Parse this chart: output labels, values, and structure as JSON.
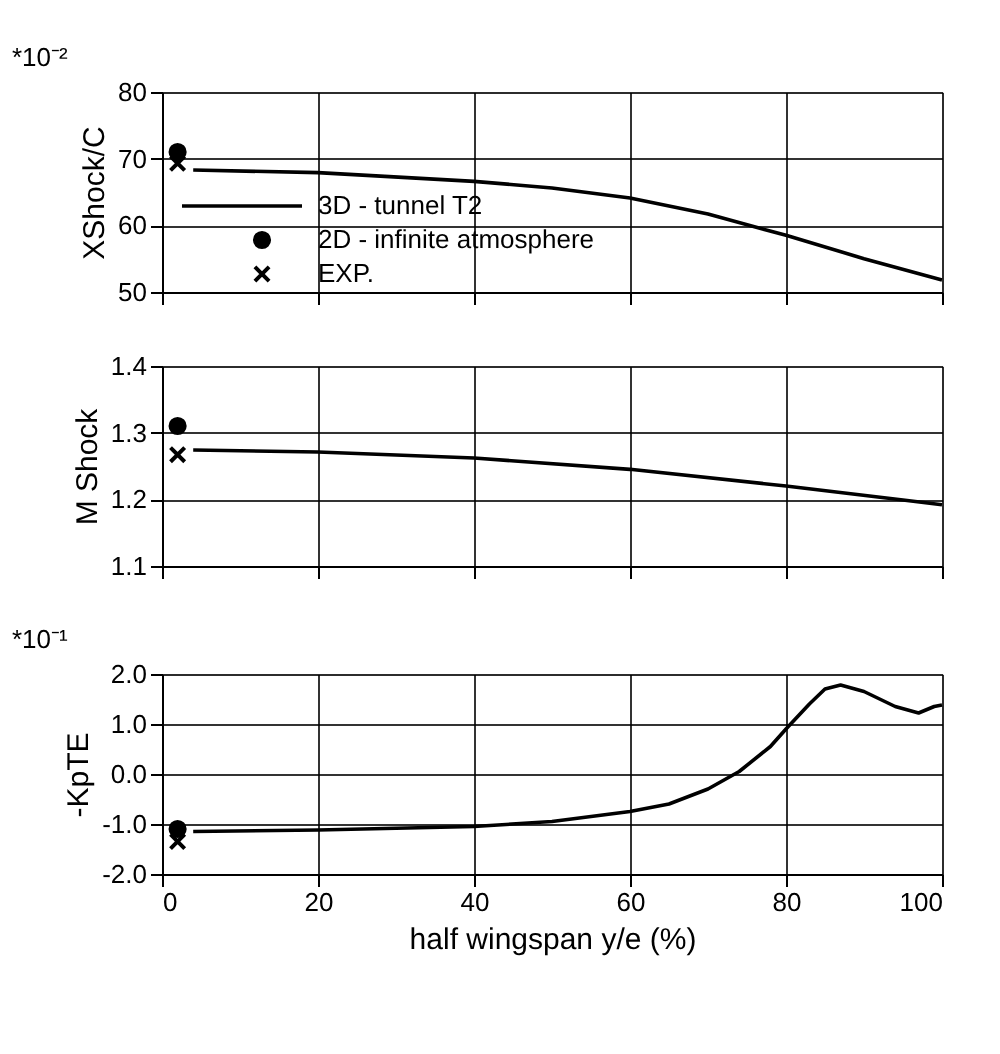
{
  "chart_data": [
    {
      "type": "line",
      "ylabel": "XShock/C",
      "annotations": [
        "*10⁻²"
      ],
      "xlim": [
        0,
        100
      ],
      "xticks": [
        0,
        20,
        40,
        60,
        80,
        100
      ],
      "ylim": [
        50,
        80
      ],
      "yticks": [
        50,
        60,
        70,
        80
      ],
      "grid": true,
      "legend": "left",
      "tick_labels": "y",
      "series": [
        {
          "name": "3D - tunnel T2",
          "type": "line",
          "color": "#000000",
          "marker": "none",
          "x": [
            4,
            20,
            40,
            50,
            60,
            70,
            80,
            90,
            100
          ],
          "values": [
            68.3,
            67.9,
            66.6,
            65.6,
            64.1,
            61.7,
            58.5,
            55,
            51.8
          ]
        },
        {
          "name": "2D - infinite atmosphere",
          "type": "scatter",
          "color": "#000000",
          "marker": "circle",
          "x": [
            2
          ],
          "values": [
            71
          ]
        },
        {
          "name": "EXP.",
          "type": "scatter",
          "color": "#000000",
          "marker": "cross",
          "x": [
            2
          ],
          "values": [
            69.3
          ]
        }
      ]
    },
    {
      "type": "line",
      "ylabel": "M Shock",
      "xlim": [
        0,
        100
      ],
      "xticks": [
        0,
        20,
        40,
        60,
        80,
        100
      ],
      "ylim": [
        1.1,
        1.4
      ],
      "yticks": [
        1.1,
        1.2,
        1.3,
        1.4
      ],
      "grid": true,
      "tick_labels": "y",
      "series": [
        {
          "type": "line",
          "color": "#000000",
          "marker": "none",
          "x": [
            4,
            20,
            40,
            60,
            80,
            95,
            100
          ],
          "values": [
            1.274,
            1.271,
            1.262,
            1.245,
            1.22,
            1.199,
            1.192
          ]
        },
        {
          "type": "scatter",
          "color": "#000000",
          "marker": "circle",
          "x": [
            2
          ],
          "values": [
            1.31
          ]
        },
        {
          "type": "scatter",
          "color": "#000000",
          "marker": "cross",
          "x": [
            2
          ],
          "values": [
            1.267
          ]
        }
      ]
    },
    {
      "type": "line",
      "ylabel": "-KpTE",
      "xlabel": "half wingspan y/e (%)",
      "annotations": [
        "*10⁻¹"
      ],
      "xlim": [
        0,
        100
      ],
      "xticks": [
        0,
        20,
        40,
        60,
        80,
        100
      ],
      "ylim": [
        -2,
        2
      ],
      "yticks": [
        {
          "value": -2,
          "label": "-2.0"
        },
        {
          "value": -1,
          "label": "-1.0"
        },
        {
          "value": 0,
          "label": "0.0"
        },
        {
          "value": 1,
          "label": "1.0"
        },
        {
          "value": 2,
          "label": "2.0"
        }
      ],
      "grid": true,
      "series": [
        {
          "type": "line",
          "color": "#000000",
          "marker": "none",
          "x": [
            4,
            20,
            40,
            50,
            60,
            65,
            70,
            74,
            78,
            80,
            83,
            85,
            87,
            90,
            94,
            97,
            99,
            100
          ],
          "values": [
            -1.15,
            -1.12,
            -1.05,
            -0.95,
            -0.75,
            -0.6,
            -0.3,
            0.05,
            0.55,
            0.9,
            1.4,
            1.7,
            1.78,
            1.65,
            1.35,
            1.22,
            1.35,
            1.38
          ]
        },
        {
          "type": "scatter",
          "color": "#000000",
          "marker": "circle",
          "x": [
            2
          ],
          "values": [
            -1.1
          ]
        },
        {
          "type": "scatter",
          "color": "#000000",
          "marker": "cross",
          "x": [
            2
          ],
          "values": [
            -1.35
          ]
        }
      ]
    }
  ]
}
